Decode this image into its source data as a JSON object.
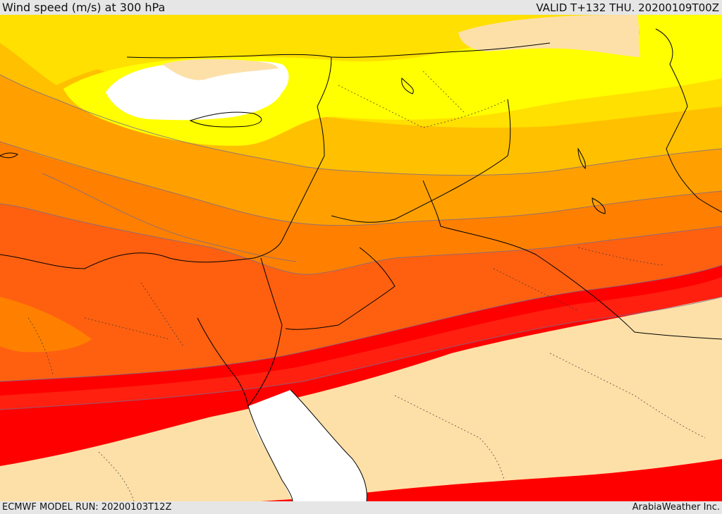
{
  "header": {
    "title": "Wind speed (m/s) at 300 hPa",
    "valid": "VALID T+132 THU. 20200109T00Z"
  },
  "footer": {
    "model_run": "ECMWF MODEL RUN: 20200103T12Z",
    "credit": "ArabiaWeather Inc."
  },
  "map": {
    "field": "wind speed at 300 hPa",
    "palette": {
      "lowest_band": "#ffffff",
      "band_1": "#fde0a8",
      "band_2": "#ffff00",
      "band_3": "#ffe000",
      "band_4": "#ffc000",
      "band_5": "#ffa000",
      "band_6": "#ff8000",
      "band_7": "#ff6010",
      "band_8": "#ff4010",
      "band_9": "#ff2010",
      "band_10": "#ff0000",
      "contour_line": "#7a6a8a",
      "coastline": "#000000"
    }
  }
}
